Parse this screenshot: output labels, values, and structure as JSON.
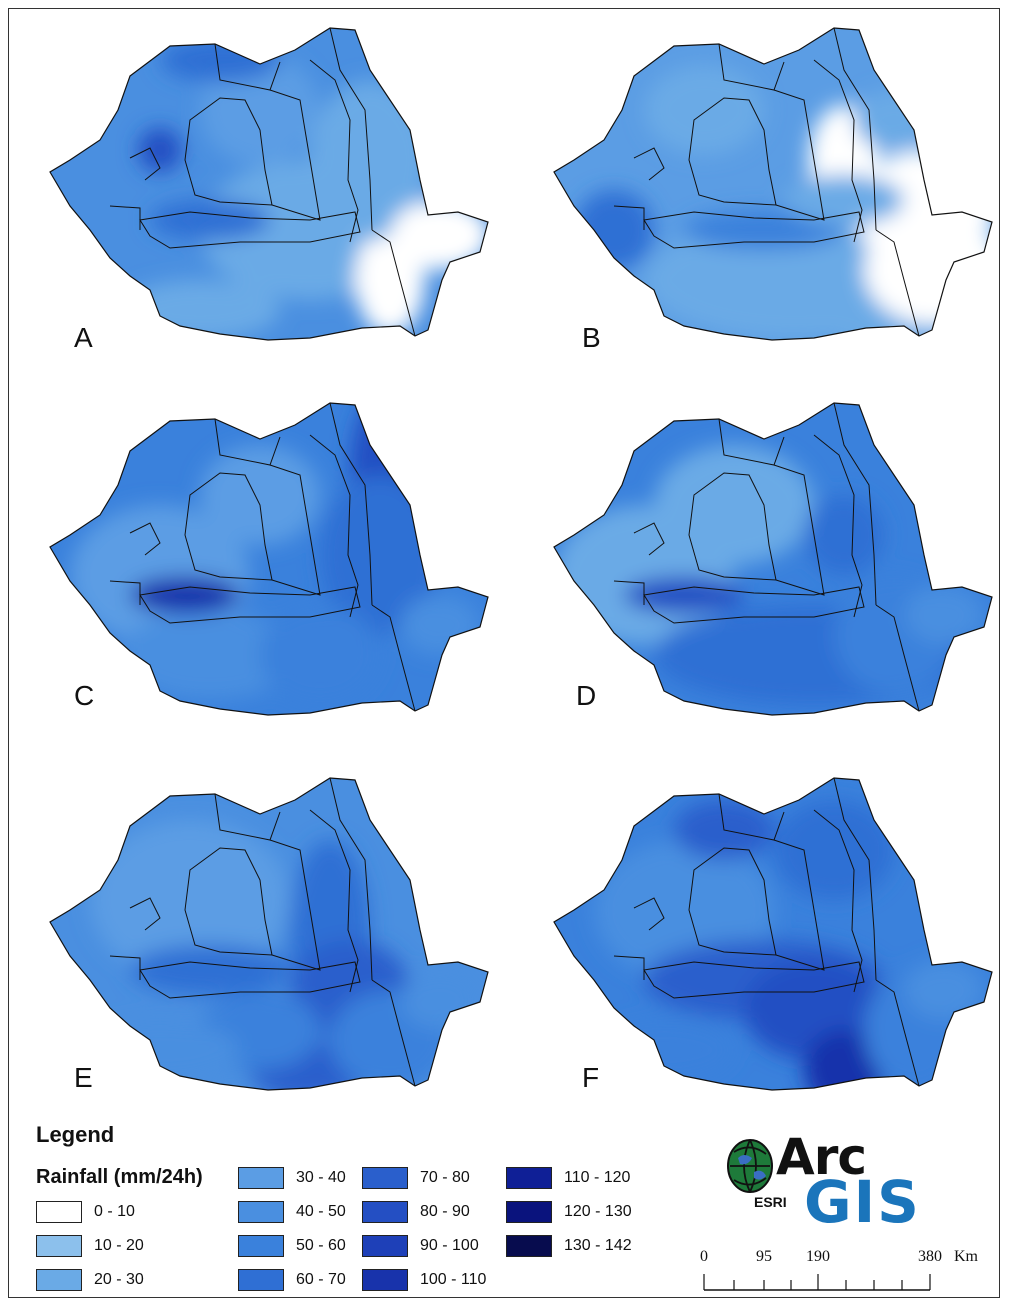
{
  "maps": [
    {
      "label": "A"
    },
    {
      "label": "B"
    },
    {
      "label": "C"
    },
    {
      "label": "D"
    },
    {
      "label": "E"
    },
    {
      "label": "F"
    }
  ],
  "legend": {
    "title": "Legend",
    "subtitle": "Rainfall (mm/24h)",
    "classes": [
      {
        "label": "0 - 10",
        "color": "#ffffff"
      },
      {
        "label": "10 - 20",
        "color": "#8cc0ec"
      },
      {
        "label": "20 - 30",
        "color": "#6aaae6"
      },
      {
        "label": "30 - 40",
        "color": "#5b9de4"
      },
      {
        "label": "40 - 50",
        "color": "#4a8fe0"
      },
      {
        "label": "50 - 60",
        "color": "#3a81dc"
      },
      {
        "label": "60 - 70",
        "color": "#2f6fd4"
      },
      {
        "label": "70 - 80",
        "color": "#2a5fcc"
      },
      {
        "label": "80 - 90",
        "color": "#244fc3"
      },
      {
        "label": "90 - 100",
        "color": "#1e40b8"
      },
      {
        "label": "100 - 110",
        "color": "#1833ab"
      },
      {
        "label": "110 - 120",
        "color": "#0f1f96"
      },
      {
        "label": "120 - 130",
        "color": "#0a137d"
      },
      {
        "label": "130 - 142",
        "color": "#070c4e"
      }
    ]
  },
  "logo": {
    "arc": "Arc",
    "gis": "GIS",
    "esri": "ESRI"
  },
  "scalebar": {
    "ticks": [
      "0",
      "95",
      "190",
      "380"
    ],
    "unit": "Km"
  }
}
